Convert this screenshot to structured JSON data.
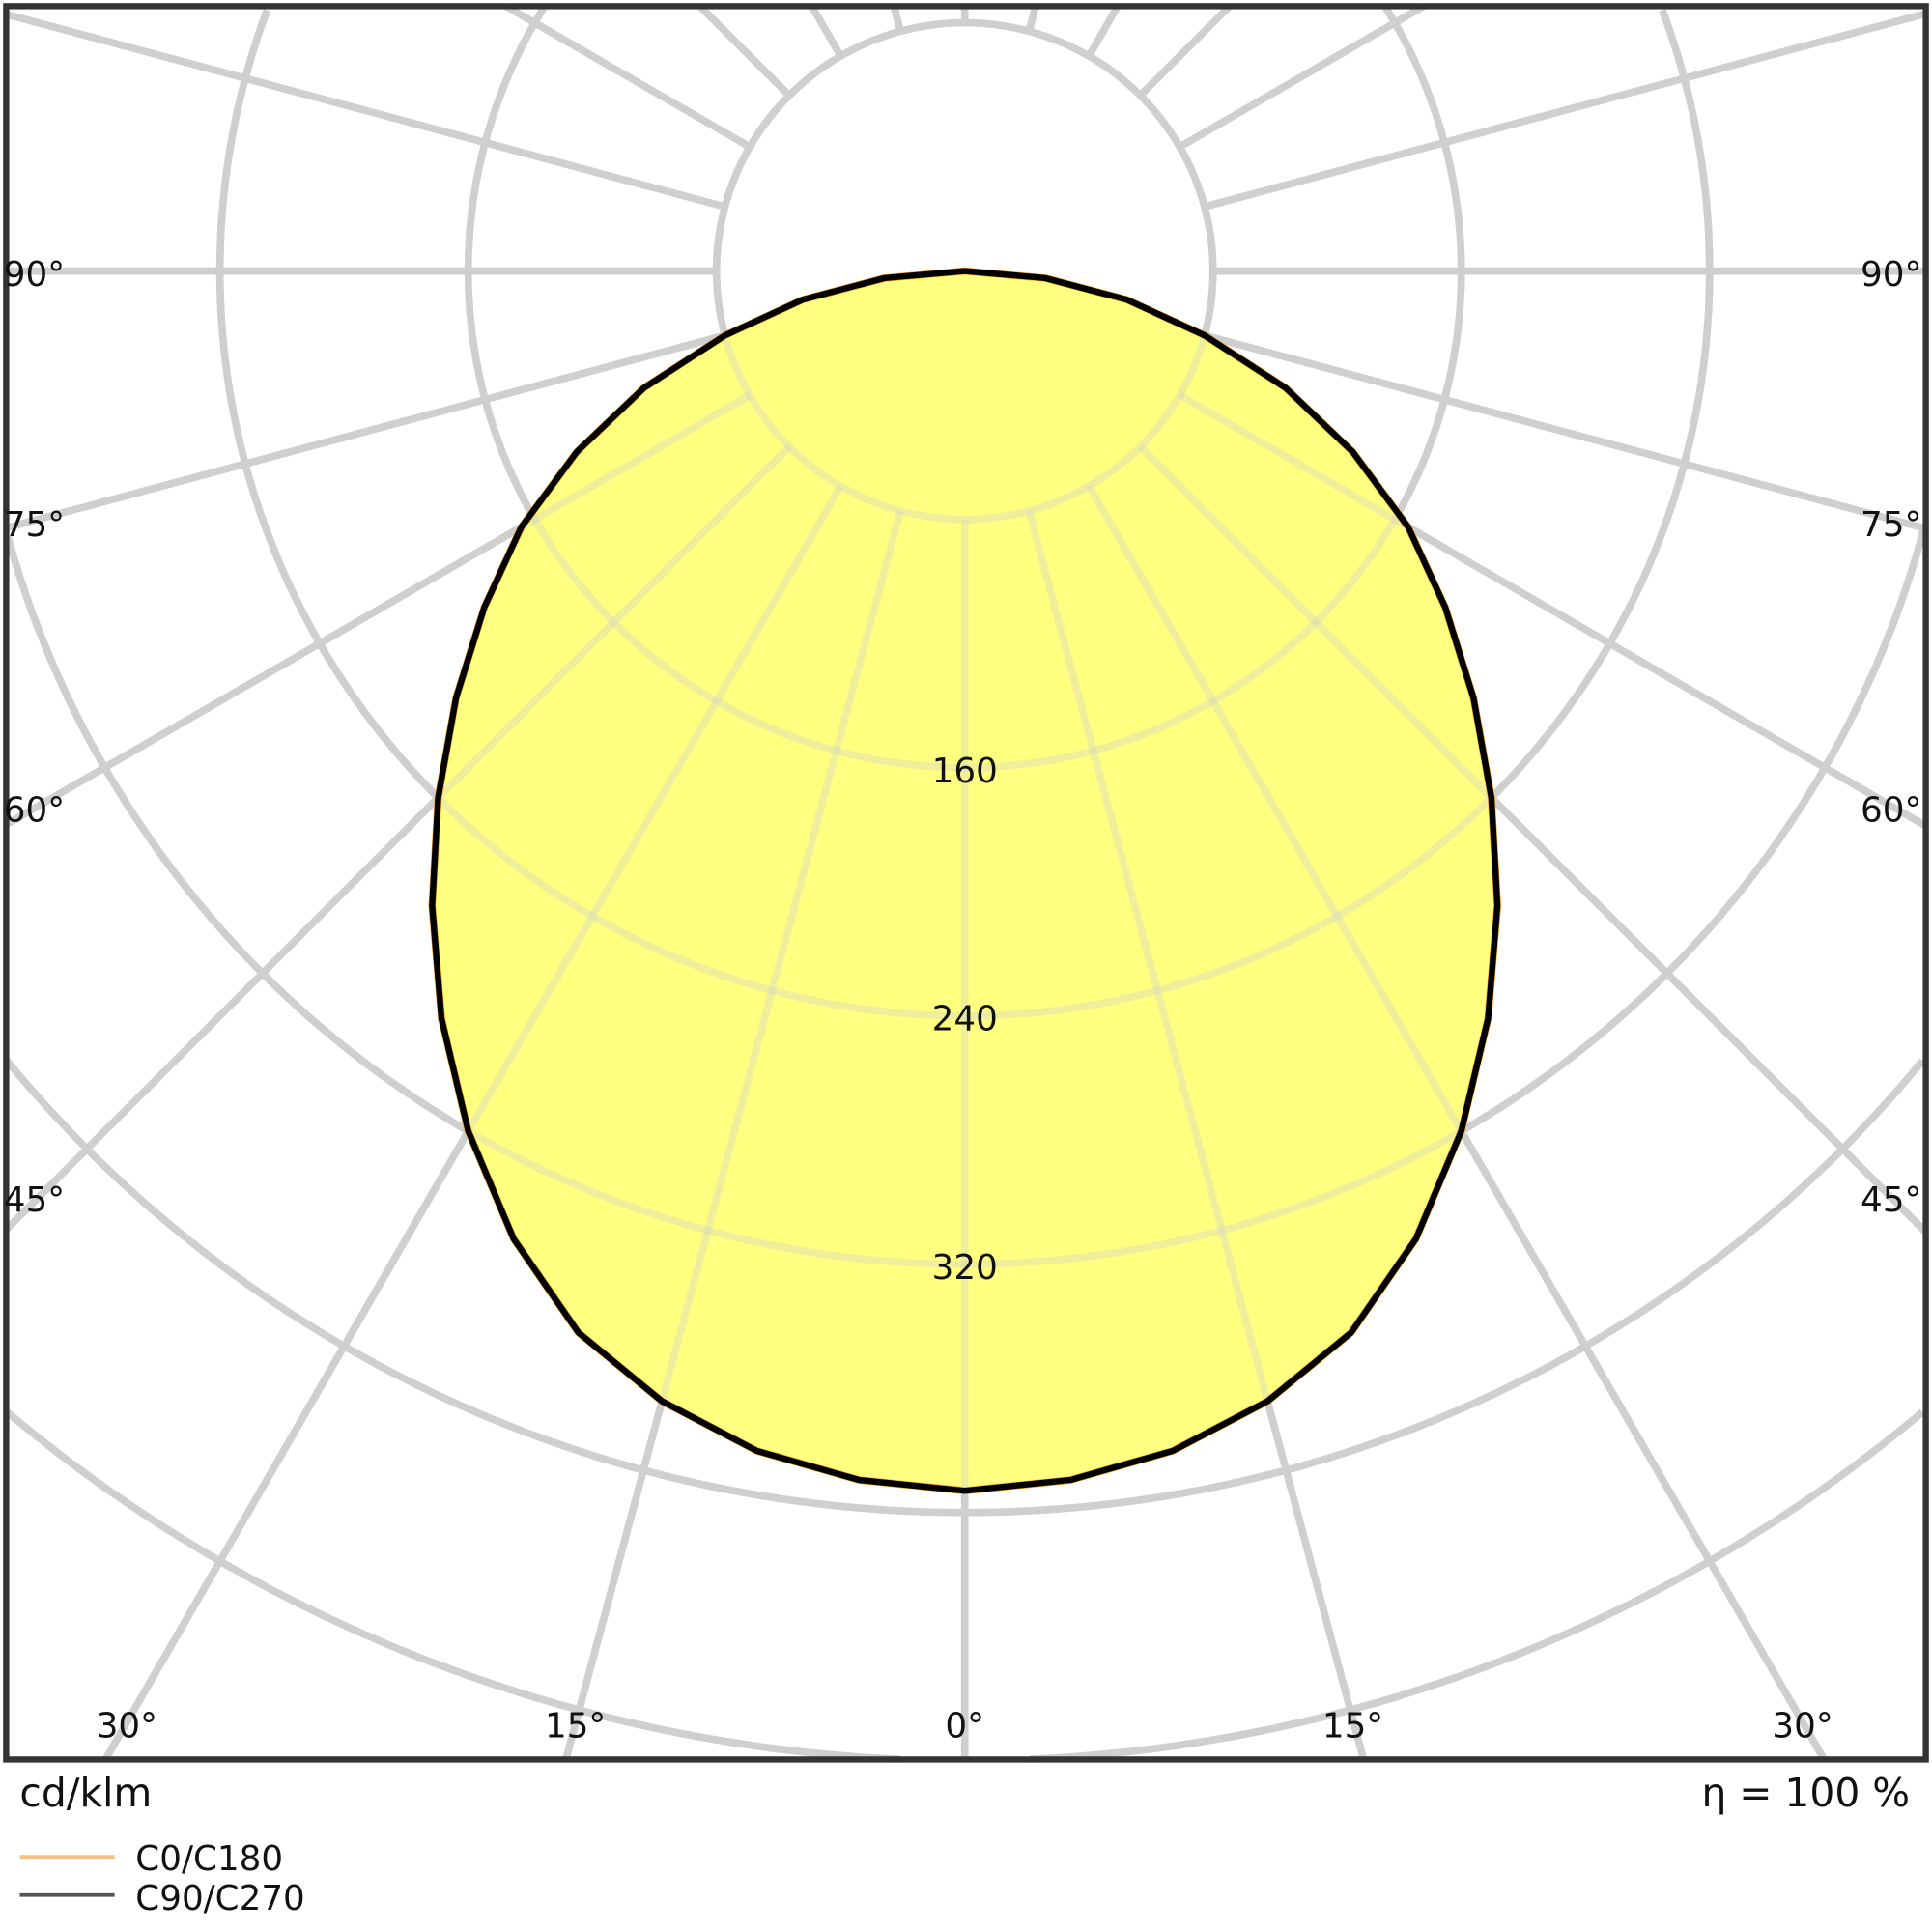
{
  "chart_data": {
    "type": "polar",
    "unit_label": "cd/klm",
    "efficiency_label": "η = 100 %",
    "radial_ticks": [
      80,
      160,
      240,
      320,
      400,
      480
    ],
    "radial_tick_labels": [
      "160",
      "240",
      "320"
    ],
    "angle_labels_side": [
      "90°",
      "75°",
      "60°",
      "45°"
    ],
    "angle_labels_bottom": [
      "30°",
      "15°",
      "0°",
      "15°",
      "30°"
    ],
    "angles": [
      0,
      5,
      10,
      15,
      20,
      25,
      30,
      35,
      40,
      45,
      50,
      55,
      60,
      65,
      70,
      75,
      80,
      85,
      90
    ],
    "series": [
      {
        "name": "C0/C180",
        "color": "#f5a623",
        "values": [
          393,
          391,
          386,
          377,
          364,
          344,
          320,
          294,
          267,
          240,
          214,
          189,
          165,
          138,
          110,
          80,
          53,
          26,
          0
        ]
      },
      {
        "name": "C90/C270",
        "color": "#000000",
        "values": [
          393,
          391,
          386,
          377,
          364,
          344,
          320,
          294,
          267,
          240,
          214,
          189,
          165,
          138,
          110,
          80,
          53,
          26,
          0
        ]
      }
    ],
    "fill_color": "#ffff80",
    "grid": true,
    "legend_position": "bottom-left"
  }
}
